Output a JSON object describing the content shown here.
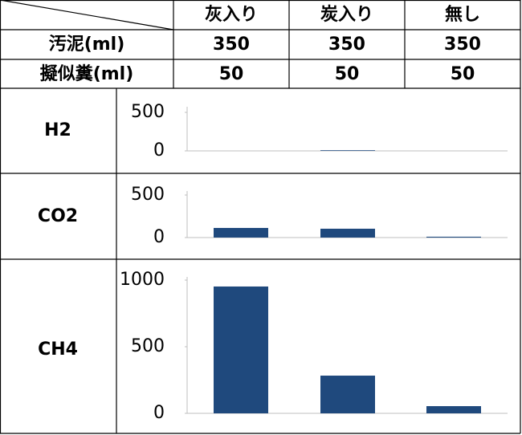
{
  "table": {
    "columns": [
      "灰入り",
      "炭入り",
      "無し"
    ],
    "rows": [
      {
        "label": "汚泥(ml)",
        "values": [
          350,
          350,
          350
        ]
      },
      {
        "label": "擬似糞(ml)",
        "values": [
          50,
          50,
          50
        ]
      }
    ]
  },
  "chart_data": [
    {
      "type": "bar",
      "title": "H2",
      "values": [
        0,
        8,
        0
      ],
      "color": "#1f497d",
      "ylim": [
        0,
        500
      ],
      "yticks": [
        0,
        500
      ]
    },
    {
      "type": "bar",
      "title": "CO2",
      "values": [
        113,
        104,
        10
      ],
      "color": "#1f497d",
      "ylim": [
        0,
        500
      ],
      "yticks": [
        0,
        500
      ]
    },
    {
      "type": "bar",
      "title": "CH4",
      "values": [
        952,
        283,
        54
      ],
      "color": "#1f497d",
      "ylim": [
        0,
        1000
      ],
      "yticks": [
        0,
        500,
        1000
      ]
    }
  ]
}
